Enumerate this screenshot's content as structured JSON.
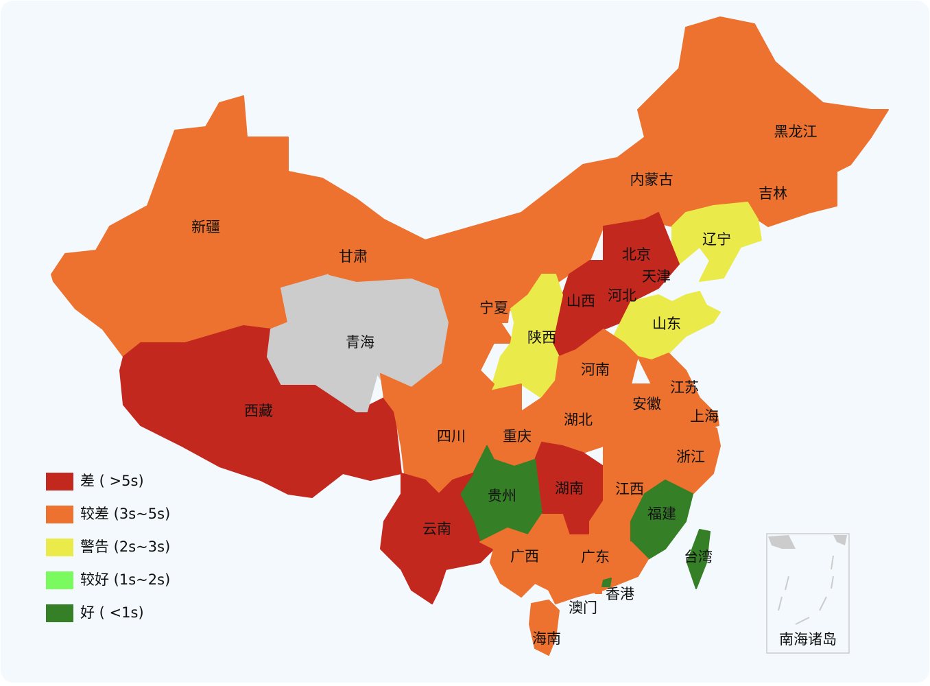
{
  "legend": [
    {
      "label": "差 ( >5s)",
      "color": "#c3281f"
    },
    {
      "label": "较差 (3s~5s)",
      "color": "#ed722f"
    },
    {
      "label": "警告 (2s~3s)",
      "color": "#eaea4b"
    },
    {
      "label": "较好 (1s~2s)",
      "color": "#7afa5f"
    },
    {
      "label": "好 ( <1s)",
      "color": "#357f26"
    }
  ],
  "no_data_color": "#cccccc",
  "provinces": [
    {
      "name": "新疆",
      "level": 1
    },
    {
      "name": "西藏",
      "level": 0
    },
    {
      "name": "青海",
      "level": null
    },
    {
      "name": "甘肃",
      "level": 1
    },
    {
      "name": "内蒙古",
      "level": 1
    },
    {
      "name": "黑龙江",
      "level": 1
    },
    {
      "name": "吉林",
      "level": 1
    },
    {
      "name": "辽宁",
      "level": 2
    },
    {
      "name": "河北",
      "level": 0
    },
    {
      "name": "北京",
      "level": 0
    },
    {
      "name": "天津",
      "level": 0
    },
    {
      "name": "山西",
      "level": 0
    },
    {
      "name": "山东",
      "level": 2
    },
    {
      "name": "宁夏",
      "level": 1
    },
    {
      "name": "陕西",
      "level": 2
    },
    {
      "name": "河南",
      "level": 1
    },
    {
      "name": "江苏",
      "level": 1
    },
    {
      "name": "安徽",
      "level": 1
    },
    {
      "name": "上海",
      "level": 1
    },
    {
      "name": "湖北",
      "level": 1
    },
    {
      "name": "四川",
      "level": 1
    },
    {
      "name": "重庆",
      "level": 1
    },
    {
      "name": "浙江",
      "level": 1
    },
    {
      "name": "湖南",
      "level": 0
    },
    {
      "name": "江西",
      "level": 1
    },
    {
      "name": "贵州",
      "level": 4
    },
    {
      "name": "福建",
      "level": 4
    },
    {
      "name": "云南",
      "level": 0
    },
    {
      "name": "广西",
      "level": 1
    },
    {
      "name": "广东",
      "level": 1
    },
    {
      "name": "台湾",
      "level": 4
    },
    {
      "name": "香港",
      "level": 4
    },
    {
      "name": "澳门",
      "level": 1
    },
    {
      "name": "海南",
      "level": 1
    }
  ],
  "inset_label": "南海诸岛"
}
